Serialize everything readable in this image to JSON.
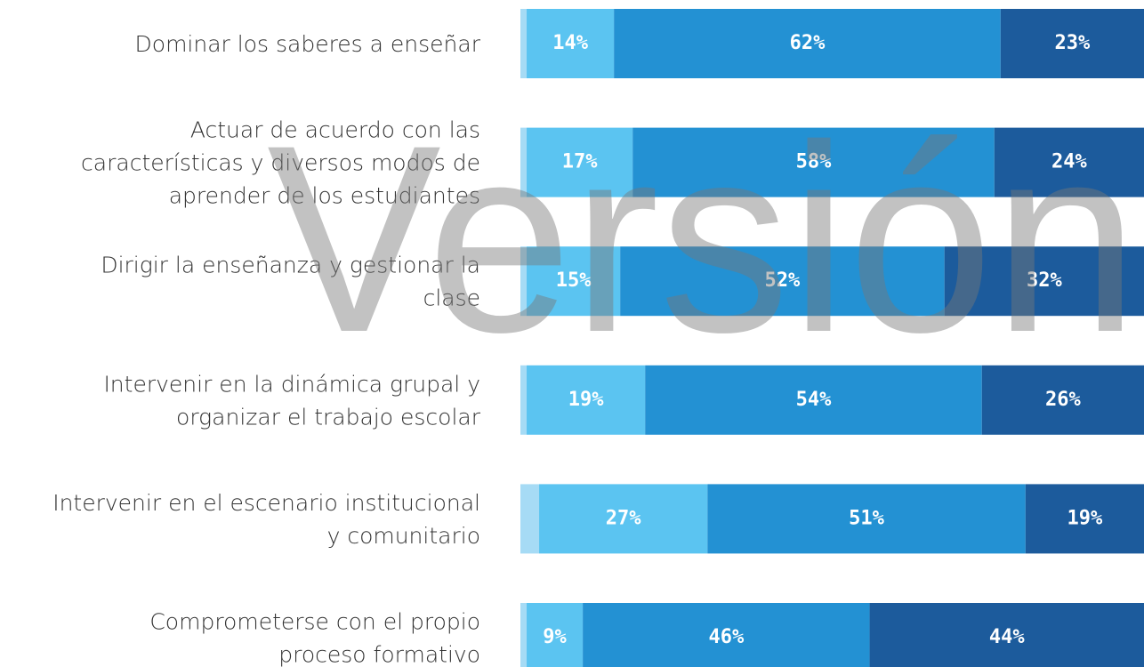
{
  "chart_data": {
    "type": "stacked-bar",
    "orientation": "horizontal",
    "watermark": "Versión",
    "categories": [
      [
        "Dominar los saberes a enseñar"
      ],
      [
        "Actuar de acuerdo con las",
        "características y diversos modos de",
        "aprender de los estudiantes"
      ],
      [
        "Dirigir la enseñanza y gestionar la",
        "clase"
      ],
      [
        "Intervenir en la dinámica grupal y",
        "organizar el trabajo escolar"
      ],
      [
        "Intervenir en el escenario institucional",
        "y comunitario"
      ],
      [
        "Comprometerse con el propio",
        "proceso formativo"
      ]
    ],
    "xlim": [
      0,
      100
    ],
    "series": [
      {
        "color": "#a6dbf5",
        "values": [
          1,
          1,
          1,
          1,
          3,
          1
        ]
      },
      {
        "color": "#5bc4f1",
        "values": [
          14,
          17,
          15,
          19,
          27,
          9
        ],
        "value_labels": [
          "14%",
          "17%",
          "15%",
          "19%",
          "27%",
          "9%"
        ]
      },
      {
        "color": "#2391d3",
        "values": [
          62,
          58,
          52,
          54,
          51,
          46
        ],
        "value_labels": [
          "62%",
          "58%",
          "52%",
          "54%",
          "51%",
          "46%"
        ]
      },
      {
        "color": "#1c5b9c",
        "values": [
          23,
          24,
          32,
          26,
          19,
          44
        ],
        "value_labels": [
          "23%",
          "24%",
          "32%",
          "26%",
          "19%",
          "44%"
        ]
      }
    ]
  }
}
